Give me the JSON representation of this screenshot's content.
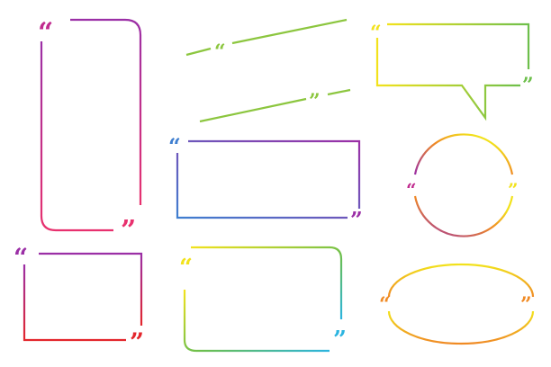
{
  "marks": {
    "open": "“",
    "close": "”"
  },
  "colors": {
    "purple": "#9b2fa6",
    "magenta": "#c02a8e",
    "pink": "#e8316e",
    "red": "#e3262c",
    "orange": "#f08a24",
    "yellow": "#f2e21c",
    "lime": "#8cc63f",
    "green": "#6dbf4b",
    "blue": "#3f7fd0",
    "cyan": "#2bb4e0"
  },
  "frames": [
    {
      "name": "tall-rounded-frame",
      "shape": "rounded-rectangle",
      "gradient": [
        "purple",
        "pink"
      ],
      "open_color": "magenta",
      "close_color": "pink"
    },
    {
      "name": "slanted-line-top",
      "shape": "line",
      "gradient": [
        "lime",
        "lime"
      ],
      "open_color": "lime"
    },
    {
      "name": "speech-bubble-frame",
      "shape": "speech-bubble",
      "gradient": [
        "yellow",
        "green"
      ],
      "open_color": "yellow",
      "close_color": "green"
    },
    {
      "name": "slanted-line-bottom",
      "shape": "line",
      "gradient": [
        "green",
        "lime"
      ],
      "close_color": "lime"
    },
    {
      "name": "wide-rectangle-frame",
      "shape": "rectangle",
      "gradient": [
        "blue",
        "purple"
      ],
      "open_color": "blue",
      "close_color": "purple"
    },
    {
      "name": "circle-frame",
      "shape": "circle",
      "gradient": [
        "yellow",
        "purple"
      ],
      "open_color": "magenta",
      "close_color": "yellow"
    },
    {
      "name": "small-rectangle-frame",
      "shape": "rectangle",
      "gradient": [
        "purple",
        "red"
      ],
      "open_color": "purple",
      "close_color": "red"
    },
    {
      "name": "rounded-rectangle-frame",
      "shape": "rounded-rectangle",
      "gradient": [
        "yellow",
        "cyan"
      ],
      "open_color": "yellow",
      "close_color": "cyan"
    },
    {
      "name": "ellipse-frame",
      "shape": "ellipse",
      "gradient": [
        "yellow",
        "orange"
      ],
      "open_color": "orange",
      "close_color": "orange"
    }
  ]
}
